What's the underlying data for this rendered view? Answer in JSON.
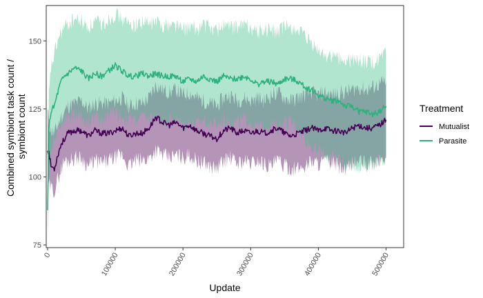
{
  "chart_data": {
    "type": "line",
    "xlabel": "Update",
    "ylabel_lines": [
      "Combined symbiont task count /",
      "symbiont count"
    ],
    "xlim": [
      -2000,
      526000
    ],
    "ylim": [
      74,
      163
    ],
    "x_ticks": [
      0,
      100000,
      200000,
      300000,
      400000,
      500000
    ],
    "x_tick_labels": [
      "0",
      "100000",
      "200000",
      "300000",
      "400000",
      "500000"
    ],
    "y_ticks": [
      75,
      100,
      125,
      150
    ],
    "y_tick_labels": [
      "75",
      "100",
      "125",
      "150"
    ],
    "grid": false,
    "legend": {
      "title": "Treatment",
      "position": "right"
    },
    "series": [
      {
        "name": "Mutualist",
        "color": "#440154",
        "ribbon_color": "#6a2c70",
        "ribbon_opacity": 0.5,
        "x": [
          0,
          2000,
          5000,
          10000,
          15000,
          20000,
          25000,
          30000,
          40000,
          50000,
          60000,
          70000,
          80000,
          90000,
          100000,
          110000,
          120000,
          130000,
          140000,
          150000,
          160000,
          170000,
          180000,
          190000,
          200000,
          210000,
          220000,
          230000,
          240000,
          250000,
          260000,
          270000,
          280000,
          290000,
          300000,
          310000,
          320000,
          330000,
          340000,
          350000,
          360000,
          370000,
          380000,
          390000,
          400000,
          410000,
          420000,
          430000,
          440000,
          450000,
          460000,
          470000,
          480000,
          490000,
          500000
        ],
        "values": [
          110,
          109,
          104,
          103,
          108,
          112,
          114,
          116,
          117,
          117,
          115,
          117,
          116,
          116,
          117,
          118,
          115,
          116,
          116,
          118,
          122,
          120,
          119,
          120,
          118,
          119,
          117,
          116,
          115,
          114,
          117,
          118,
          116,
          117,
          116,
          117,
          116,
          117,
          118,
          116,
          115,
          116,
          117,
          118,
          117,
          118,
          117,
          117,
          116,
          118,
          119,
          118,
          118,
          119,
          121
        ],
        "lower": [
          95,
          97,
          96,
          95,
          99,
          103,
          106,
          106,
          107,
          107,
          104,
          106,
          105,
          106,
          107,
          108,
          104,
          106,
          106,
          107,
          110,
          108,
          107,
          108,
          107,
          108,
          106,
          105,
          104,
          103,
          106,
          107,
          105,
          106,
          105,
          106,
          105,
          104,
          106,
          104,
          103,
          103,
          104,
          106,
          105,
          106,
          105,
          104,
          102,
          105,
          106,
          105,
          105,
          106,
          107
        ],
        "upper": [
          124,
          120,
          117,
          116,
          119,
          122,
          124,
          126,
          127,
          128,
          125,
          127,
          127,
          127,
          128,
          129,
          126,
          127,
          127,
          129,
          134,
          132,
          131,
          132,
          130,
          131,
          129,
          128,
          127,
          126,
          129,
          130,
          128,
          129,
          128,
          129,
          128,
          130,
          131,
          129,
          128,
          129,
          130,
          131,
          130,
          131,
          130,
          131,
          131,
          132,
          133,
          132,
          133,
          134,
          135
        ]
      },
      {
        "name": "Parasite",
        "color": "#2db27d",
        "ribbon_color": "#3fbf86",
        "ribbon_opacity": 0.4,
        "x": [
          0,
          2000,
          5000,
          10000,
          15000,
          20000,
          25000,
          30000,
          40000,
          50000,
          60000,
          70000,
          80000,
          90000,
          100000,
          110000,
          120000,
          130000,
          140000,
          150000,
          160000,
          170000,
          180000,
          190000,
          200000,
          210000,
          220000,
          230000,
          240000,
          250000,
          260000,
          270000,
          280000,
          290000,
          300000,
          310000,
          320000,
          330000,
          340000,
          350000,
          360000,
          370000,
          380000,
          390000,
          400000,
          410000,
          420000,
          430000,
          440000,
          450000,
          460000,
          470000,
          480000,
          490000,
          500000
        ],
        "values": [
          87,
          118,
          124,
          126,
          131,
          135,
          137,
          138,
          140,
          139,
          136,
          138,
          137,
          139,
          141,
          139,
          137,
          137,
          138,
          137,
          138,
          137,
          137,
          137,
          135,
          136,
          135,
          137,
          136,
          135,
          137,
          136,
          136,
          137,
          136,
          134,
          135,
          135,
          134,
          136,
          136,
          135,
          133,
          132,
          130,
          129,
          128,
          128,
          126,
          126,
          124,
          124,
          123,
          124,
          126
        ],
        "lower": [
          78,
          100,
          110,
          115,
          118,
          120,
          121,
          122,
          123,
          122,
          120,
          122,
          121,
          123,
          124,
          122,
          121,
          121,
          122,
          121,
          122,
          121,
          121,
          121,
          119,
          120,
          119,
          121,
          120,
          119,
          121,
          120,
          120,
          121,
          120,
          118,
          119,
          119,
          118,
          120,
          120,
          118,
          114,
          111,
          110,
          108,
          107,
          107,
          104,
          105,
          104,
          104,
          105,
          106,
          107
        ],
        "upper": [
          98,
          130,
          140,
          145,
          150,
          153,
          155,
          156,
          158,
          157,
          155,
          157,
          156,
          158,
          160,
          158,
          156,
          156,
          157,
          156,
          157,
          156,
          156,
          156,
          154,
          155,
          154,
          156,
          155,
          154,
          156,
          155,
          155,
          156,
          155,
          153,
          154,
          154,
          153,
          155,
          155,
          154,
          151,
          149,
          146,
          145,
          144,
          144,
          142,
          143,
          143,
          142,
          142,
          143,
          145
        ]
      }
    ]
  }
}
